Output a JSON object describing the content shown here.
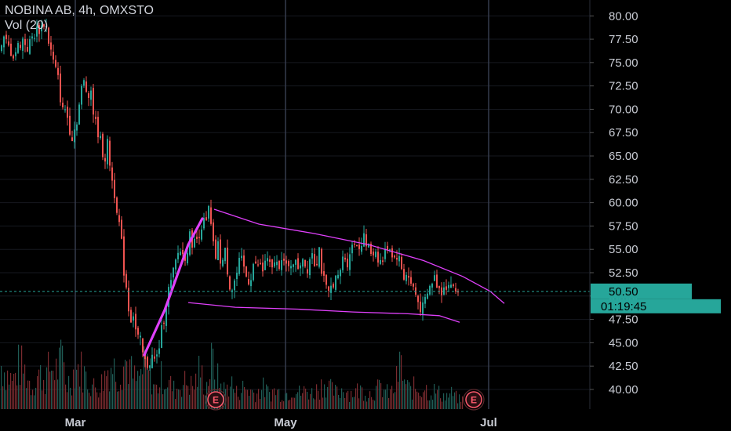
{
  "legend": {
    "title": "NOBINA AB, 4h, OMXSTO",
    "volume": "Vol (20)"
  },
  "chart_data": {
    "type": "candlestick",
    "symbol": "NOBINA AB",
    "interval": "4h",
    "exchange": "OMXSTO",
    "ylim": [
      37.9,
      81.7
    ],
    "y_ticks": [
      "80.00",
      "77.50",
      "75.00",
      "72.50",
      "70.00",
      "67.50",
      "65.00",
      "62.50",
      "60.00",
      "57.50",
      "55.00",
      "52.50",
      "50.00",
      "47.50",
      "45.00",
      "42.50",
      "40.00"
    ],
    "x_ticks": [
      "Mar",
      "May",
      "Jul"
    ],
    "last_price": "50.50",
    "countdown": "01:19:45",
    "earnings_markers": [
      "E",
      "E"
    ],
    "close_path": [
      [
        0,
        76.0
      ],
      [
        6,
        77.5
      ],
      [
        12,
        76.5
      ],
      [
        18,
        75.8
      ],
      [
        24,
        76.8
      ],
      [
        30,
        77.5
      ],
      [
        36,
        76.5
      ],
      [
        42,
        77.8
      ],
      [
        48,
        78.5
      ],
      [
        54,
        78.8
      ],
      [
        58,
        79.6
      ],
      [
        62,
        77.5
      ],
      [
        66,
        76.0
      ],
      [
        70,
        74.5
      ],
      [
        74,
        73.5
      ],
      [
        78,
        71.0
      ],
      [
        81,
        69.5
      ],
      [
        84,
        70.2
      ],
      [
        88,
        68.5
      ],
      [
        92,
        67.0
      ],
      [
        96,
        68.0
      ],
      [
        100,
        69.5
      ],
      [
        104,
        72.0
      ],
      [
        108,
        73.0
      ],
      [
        112,
        71.5
      ],
      [
        116,
        72.5
      ],
      [
        119,
        70.0
      ],
      [
        122,
        68.5
      ],
      [
        126,
        67.5
      ],
      [
        130,
        66.0
      ],
      [
        134,
        64.5
      ],
      [
        137,
        66.5
      ],
      [
        141,
        64.0
      ],
      [
        144,
        62.0
      ],
      [
        148,
        60.5
      ],
      [
        152,
        58.0
      ],
      [
        155,
        56.0
      ],
      [
        158,
        53.0
      ],
      [
        161,
        51.5
      ],
      [
        164,
        49.0
      ],
      [
        167,
        47.5
      ],
      [
        170,
        48.5
      ],
      [
        173,
        46.5
      ],
      [
        176,
        45.5
      ],
      [
        180,
        45.0
      ],
      [
        183,
        43.5
      ],
      [
        187,
        42.5
      ],
      [
        191,
        43.0
      ],
      [
        195,
        43.5
      ],
      [
        199,
        42.8
      ],
      [
        203,
        44.5
      ],
      [
        207,
        46.5
      ],
      [
        211,
        48.5
      ],
      [
        215,
        50.5
      ],
      [
        219,
        51.5
      ],
      [
        223,
        53.0
      ],
      [
        227,
        54.5
      ],
      [
        231,
        55.0
      ],
      [
        235,
        54.0
      ],
      [
        239,
        55.0
      ],
      [
        243,
        56.5
      ],
      [
        247,
        55.5
      ],
      [
        251,
        56.0
      ],
      [
        255,
        57.0
      ],
      [
        259,
        58.0
      ],
      [
        263,
        57.5
      ],
      [
        267,
        59.5
      ],
      [
        271,
        56.0
      ],
      [
        275,
        54.0
      ],
      [
        279,
        55.5
      ],
      [
        283,
        53.0
      ],
      [
        287,
        55.0
      ],
      [
        291,
        52.5
      ],
      [
        295,
        50.5
      ],
      [
        299,
        51.5
      ],
      [
        303,
        52.5
      ],
      [
        307,
        54.0
      ],
      [
        311,
        53.0
      ],
      [
        315,
        52.0
      ],
      [
        319,
        51.5
      ],
      [
        323,
        53.5
      ],
      [
        327,
        53.0
      ],
      [
        331,
        53.5
      ],
      [
        335,
        52.5
      ],
      [
        339,
        54.0
      ],
      [
        343,
        53.5
      ],
      [
        347,
        52.5
      ],
      [
        351,
        54.0
      ],
      [
        355,
        53.0
      ],
      [
        359,
        54.5
      ],
      [
        363,
        53.5
      ],
      [
        367,
        52.5
      ],
      [
        371,
        53.5
      ],
      [
        375,
        54.0
      ],
      [
        379,
        53.0
      ],
      [
        383,
        53.5
      ],
      [
        387,
        54.5
      ],
      [
        391,
        52.5
      ],
      [
        395,
        54.0
      ],
      [
        399,
        55.0
      ],
      [
        403,
        53.0
      ],
      [
        407,
        55.5
      ],
      [
        411,
        52.5
      ],
      [
        415,
        51.0
      ],
      [
        419,
        50.0
      ],
      [
        423,
        51.0
      ],
      [
        427,
        52.0
      ],
      [
        431,
        51.5
      ],
      [
        435,
        53.0
      ],
      [
        439,
        54.5
      ],
      [
        443,
        53.5
      ],
      [
        447,
        55.0
      ],
      [
        451,
        55.5
      ],
      [
        455,
        56.0
      ],
      [
        459,
        55.0
      ],
      [
        463,
        56.5
      ],
      [
        467,
        55.5
      ],
      [
        471,
        55.0
      ],
      [
        475,
        54.5
      ],
      [
        479,
        55.0
      ],
      [
        483,
        54.0
      ],
      [
        487,
        53.5
      ],
      [
        491,
        54.5
      ],
      [
        495,
        55.5
      ],
      [
        499,
        55.0
      ],
      [
        503,
        54.0
      ],
      [
        507,
        54.5
      ],
      [
        511,
        53.5
      ],
      [
        515,
        52.0
      ],
      [
        519,
        52.5
      ],
      [
        523,
        51.5
      ],
      [
        527,
        51.0
      ],
      [
        531,
        50.0
      ],
      [
        535,
        49.0
      ],
      [
        539,
        48.5
      ],
      [
        543,
        49.5
      ],
      [
        547,
        50.5
      ],
      [
        551,
        51.5
      ],
      [
        555,
        52.0
      ],
      [
        559,
        51.0
      ],
      [
        563,
        50.5
      ],
      [
        567,
        51.5
      ],
      [
        571,
        51.0
      ],
      [
        575,
        51.5
      ],
      [
        579,
        50.5
      ],
      [
        583,
        50.5
      ]
    ],
    "volume_peaks": [
      [
        0,
        45.5
      ],
      [
        8,
        44.0
      ],
      [
        16,
        42.5
      ],
      [
        24,
        45.5
      ],
      [
        32,
        44.0
      ],
      [
        40,
        41.5
      ],
      [
        48,
        44.0
      ],
      [
        56,
        43.0
      ],
      [
        64,
        45.0
      ],
      [
        72,
        44.5
      ],
      [
        80,
        46.5
      ],
      [
        84,
        42.0
      ],
      [
        90,
        43.0
      ],
      [
        96,
        45.0
      ],
      [
        104,
        44.5
      ],
      [
        112,
        42.5
      ],
      [
        120,
        41.5
      ],
      [
        128,
        42.0
      ],
      [
        136,
        44.5
      ],
      [
        142,
        45.5
      ],
      [
        150,
        43.5
      ],
      [
        158,
        46.0
      ],
      [
        164,
        45.5
      ],
      [
        168,
        43.5
      ],
      [
        174,
        42.5
      ],
      [
        180,
        44.0
      ],
      [
        186,
        45.5
      ],
      [
        192,
        43.5
      ],
      [
        198,
        41.0
      ],
      [
        206,
        43.5
      ],
      [
        214,
        42.5
      ],
      [
        222,
        41.0
      ],
      [
        230,
        42.0
      ],
      [
        238,
        42.5
      ],
      [
        246,
        41.5
      ],
      [
        254,
        44.5
      ],
      [
        262,
        41.5
      ],
      [
        270,
        46.0
      ],
      [
        278,
        42.5
      ],
      [
        286,
        41.0
      ],
      [
        294,
        42.5
      ],
      [
        300,
        40.5
      ],
      [
        310,
        41.5
      ],
      [
        318,
        41.0
      ],
      [
        326,
        40.5
      ],
      [
        334,
        41.5
      ],
      [
        342,
        40.5
      ],
      [
        350,
        41.0
      ],
      [
        358,
        40.5
      ],
      [
        366,
        40.5
      ],
      [
        374,
        41.5
      ],
      [
        382,
        40.5
      ],
      [
        390,
        41.0
      ],
      [
        398,
        40.5
      ],
      [
        406,
        41.5
      ],
      [
        414,
        42.5
      ],
      [
        422,
        41.0
      ],
      [
        430,
        40.5
      ],
      [
        438,
        41.5
      ],
      [
        446,
        40.5
      ],
      [
        454,
        41.0
      ],
      [
        462,
        41.0
      ],
      [
        470,
        40.5
      ],
      [
        478,
        41.0
      ],
      [
        486,
        41.5
      ],
      [
        494,
        40.5
      ],
      [
        502,
        41.0
      ],
      [
        510,
        45.5
      ],
      [
        516,
        42.0
      ],
      [
        522,
        41.0
      ],
      [
        528,
        41.5
      ],
      [
        536,
        41.0
      ],
      [
        540,
        42.0
      ],
      [
        546,
        40.5
      ],
      [
        552,
        41.0
      ],
      [
        560,
        40.5
      ],
      [
        568,
        40.0
      ],
      [
        576,
        40.5
      ],
      [
        584,
        39.5
      ]
    ],
    "channel_upper": [
      [
        273,
        59.3
      ],
      [
        330,
        57.7
      ],
      [
        400,
        56.7
      ],
      [
        470,
        55.5
      ],
      [
        540,
        53.8
      ],
      [
        590,
        52.1
      ],
      [
        625,
        50.5
      ],
      [
        643,
        49.2
      ]
    ],
    "channel_lower": [
      [
        240,
        49.3
      ],
      [
        300,
        48.8
      ],
      [
        380,
        48.6
      ],
      [
        450,
        48.3
      ],
      [
        520,
        48.1
      ],
      [
        560,
        47.9
      ],
      [
        586,
        47.2
      ]
    ],
    "impulse_line": [
      [
        184,
        43.7
      ],
      [
        210,
        48.5
      ],
      [
        240,
        55.5
      ],
      [
        258,
        58.3
      ]
    ],
    "colors": {
      "up": "#26a69a",
      "down": "#ef5350",
      "channel": "#e040fb",
      "grid": "#363c4e",
      "price_tag": "#26a69a",
      "last_price_line": "#26a69a",
      "earnings": "#ff5a6e"
    }
  }
}
